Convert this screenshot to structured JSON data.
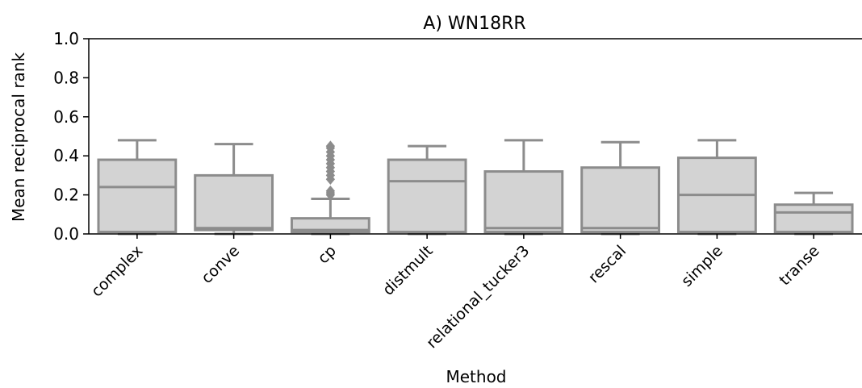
{
  "chart_data": {
    "type": "box",
    "title": "A) WN18RR",
    "xlabel": "Method",
    "ylabel": "Mean reciprocal rank",
    "ylim": [
      0.0,
      1.0
    ],
    "yticks": [
      "0.0",
      "0.2",
      "0.4",
      "0.6",
      "0.8",
      "1.0"
    ],
    "grid": false,
    "box_fill": "#d3d3d3",
    "box_stroke": "#8c8c8c",
    "categories": [
      "complex",
      "conve",
      "cp",
      "distmult",
      "relational_tucker3",
      "rescal",
      "simple",
      "transe"
    ],
    "boxes": [
      {
        "whislo": 0.0,
        "q1": 0.01,
        "median": 0.24,
        "q3": 0.38,
        "whishi": 0.48,
        "fliers": []
      },
      {
        "whislo": 0.0,
        "q1": 0.02,
        "median": 0.03,
        "q3": 0.3,
        "whishi": 0.46,
        "fliers": []
      },
      {
        "whislo": 0.0,
        "q1": 0.01,
        "median": 0.02,
        "q3": 0.08,
        "whishi": 0.18,
        "fliers": [
          0.2,
          0.21,
          0.22,
          0.28,
          0.3,
          0.32,
          0.34,
          0.36,
          0.38,
          0.4,
          0.42,
          0.44,
          0.45
        ]
      },
      {
        "whislo": 0.0,
        "q1": 0.01,
        "median": 0.27,
        "q3": 0.38,
        "whishi": 0.45,
        "fliers": []
      },
      {
        "whislo": 0.0,
        "q1": 0.01,
        "median": 0.03,
        "q3": 0.32,
        "whishi": 0.48,
        "fliers": []
      },
      {
        "whislo": 0.0,
        "q1": 0.01,
        "median": 0.03,
        "q3": 0.34,
        "whishi": 0.47,
        "fliers": []
      },
      {
        "whislo": 0.0,
        "q1": 0.01,
        "median": 0.2,
        "q3": 0.39,
        "whishi": 0.48,
        "fliers": []
      },
      {
        "whislo": 0.0,
        "q1": 0.01,
        "median": 0.11,
        "q3": 0.15,
        "whishi": 0.21,
        "fliers": []
      }
    ]
  }
}
